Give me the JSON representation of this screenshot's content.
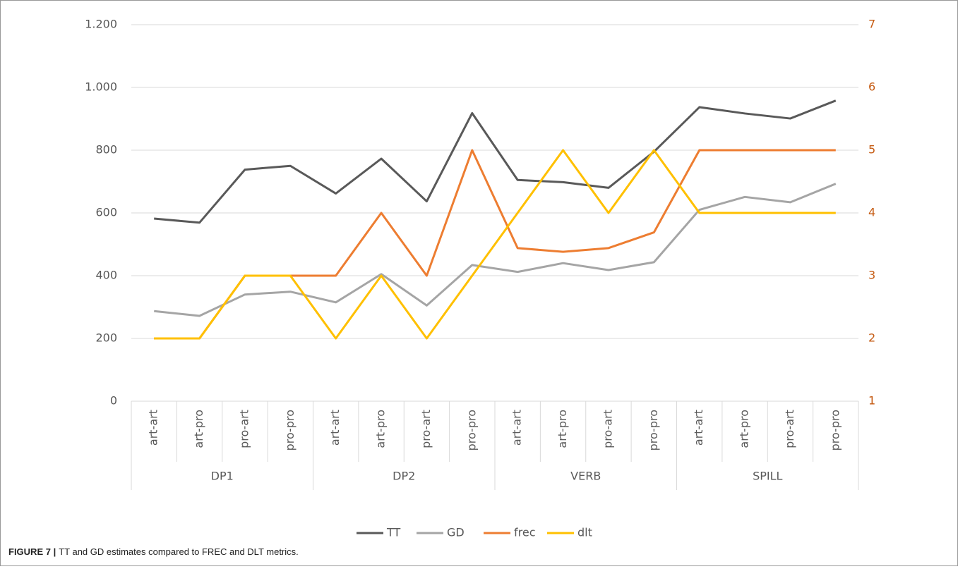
{
  "chart_data": {
    "type": "line",
    "caption_label": "FIGURE 7 |",
    "caption": "TT and GD estimates compared to FREC and DLT metrics.",
    "categories": [
      "art-art",
      "art-pro",
      "pro-art",
      "pro-pro",
      "art-art",
      "art-pro",
      "pro-art",
      "pro-pro",
      "art-art",
      "art-pro",
      "pro-art",
      "pro-pro",
      "art-art",
      "art-pro",
      "pro-art",
      "pro-pro"
    ],
    "groups": [
      "DP1",
      "DP2",
      "VERB",
      "SPILL"
    ],
    "series": [
      {
        "name": "TT",
        "color": "#595959",
        "values": [
          582,
          569,
          738,
          750,
          662,
          773,
          637,
          918,
          705,
          698,
          680,
          795,
          937,
          917,
          901,
          958
        ]
      },
      {
        "name": "GD",
        "color": "#a5a5a5",
        "values": [
          287,
          272,
          340,
          349,
          315,
          405,
          305,
          434,
          412,
          440,
          418,
          443,
          610,
          651,
          634,
          693
        ]
      },
      {
        "name": "frec",
        "color": "#ed7d31",
        "axis": "y2",
        "values": [
          2,
          2,
          3,
          3,
          3,
          4,
          3,
          5,
          3.44,
          3.38,
          3.44,
          3.69,
          5,
          5,
          5,
          5
        ]
      },
      {
        "name": "dlt",
        "color": "#ffc000",
        "axis": "y2",
        "values": [
          2,
          2,
          3,
          3,
          2,
          3,
          2,
          3,
          4,
          5,
          4,
          5,
          4,
          4,
          4,
          4
        ]
      }
    ],
    "ylim": [
      0,
      1200
    ],
    "yticks": [
      0,
      200,
      400,
      600,
      800,
      {
        "value": 1000,
        "label": "1.000"
      },
      {
        "value": 1200,
        "label": "1.200"
      }
    ],
    "y2lim": [
      1,
      7
    ],
    "y2ticks": [
      1,
      2,
      3,
      4,
      5,
      6,
      7
    ],
    "y2_tick_color": "#c55a11",
    "grid": true,
    "legend": "bottom"
  }
}
